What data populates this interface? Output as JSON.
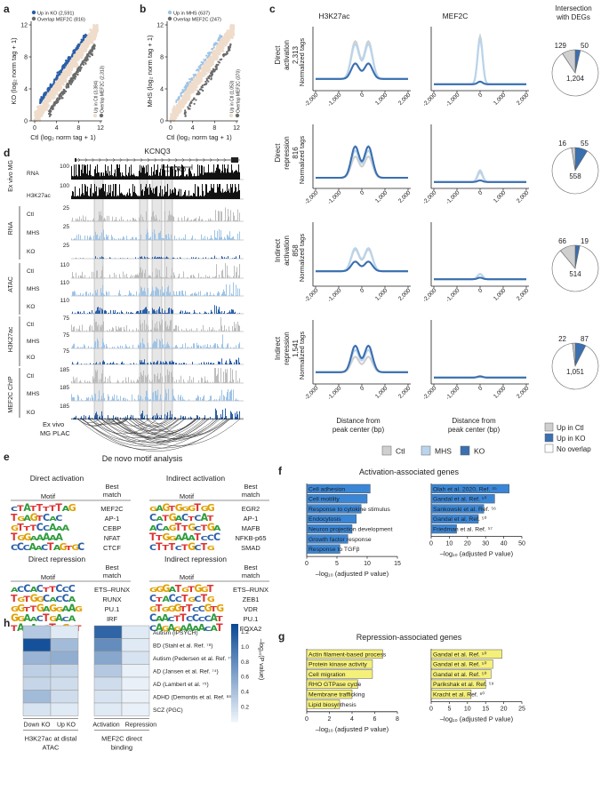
{
  "panels": {
    "a": {
      "letter": "a",
      "legend": [
        "Up in KO (2,591)",
        "Overlap MEF2C (816)"
      ],
      "side_legend": [
        "Up in Ctl (3,384)",
        "Overlap MEF2C (2,313)"
      ],
      "xlabel": "Ctl (log₂ norm tag + 1)",
      "ylabel": "KO (log₂ norm tag + 1)",
      "ticks": [
        "0",
        "4",
        "8",
        "12"
      ],
      "colors": {
        "up": "#2a5fa8",
        "overlap": "#6b6b6b",
        "bg": "#efdccb"
      }
    },
    "b": {
      "letter": "b",
      "legend": [
        "Up in MHS (637)",
        "Overlap MEF2C (247)"
      ],
      "side_legend": [
        "Up in Ctl (1,053)",
        "Overlap MEF2C (370)"
      ],
      "xlabel": "Ctl (log₂ norm tag + 1)",
      "ylabel": "MHS (log₂ norm tag + 1)",
      "ticks": [
        "0",
        "4",
        "8",
        "12"
      ],
      "colors": {
        "up": "#9fc4e6",
        "overlap": "#6b6b6b"
      }
    },
    "c": {
      "letter": "c",
      "col_titles": [
        "H3K27ac",
        "MEF2C",
        "Intersection with DEGs"
      ],
      "ylabel": "Normalized tags",
      "xlabel": "Distance from peak center (bp)",
      "xticks": [
        "-2,000",
        "-1,000",
        "0",
        "1,000",
        "2,000"
      ],
      "rows": [
        {
          "name": "Direct activation",
          "count": "2,313",
          "pie": {
            "ctl": 129,
            "ko": 50,
            "none": 1204,
            "labels": [
              "129",
              "50",
              "1,204"
            ]
          }
        },
        {
          "name": "Direct repression",
          "count": "816",
          "pie": {
            "ctl": 16,
            "ko": 55,
            "none": 558,
            "labels": [
              "16",
              "55",
              "558"
            ]
          }
        },
        {
          "name": "Indirect activation",
          "count": "858",
          "pie": {
            "ctl": 66,
            "ko": 19,
            "none": 514,
            "labels": [
              "66",
              "19",
              "514"
            ]
          }
        },
        {
          "name": "Indirect repression",
          "count": "1,541",
          "pie": {
            "ctl": 22,
            "ko": 87,
            "none": 1051,
            "labels": [
              "22",
              "87",
              "1,051"
            ]
          }
        }
      ],
      "legend": [
        "Ctl",
        "MHS",
        "KO"
      ],
      "pie_legend": [
        "Up in Ctl",
        "Up in KO",
        "No overlap"
      ],
      "colors": {
        "ctl": "#cfcfcf",
        "mhs": "#b9d4ec",
        "ko": "#3a6fb0"
      }
    },
    "d": {
      "letter": "d",
      "gene": "KCNQ3",
      "scale": "100kb",
      "groups": [
        "Ex vivo MG",
        "RNA",
        "ATAC",
        "H3K27ac",
        "MEF2C ChIP"
      ],
      "tracks": [
        {
          "name": "RNA",
          "scale": "100"
        },
        {
          "name": "H3K27ac",
          "scale": "100"
        },
        {
          "name": "Ctl",
          "scale": "25"
        },
        {
          "name": "MHS",
          "scale": "25"
        },
        {
          "name": "KO",
          "scale": "25"
        },
        {
          "name": "Ctl",
          "scale": "110"
        },
        {
          "name": "MHS",
          "scale": "110"
        },
        {
          "name": "KO",
          "scale": "110"
        },
        {
          "name": "Ctl",
          "scale": "75"
        },
        {
          "name": "MHS",
          "scale": "75"
        },
        {
          "name": "KO",
          "scale": "75"
        },
        {
          "name": "Ctl",
          "scale": "185"
        },
        {
          "name": "MHS",
          "scale": "185"
        },
        {
          "name": "KO",
          "scale": "185"
        }
      ],
      "plac_label": [
        "Ex vivo",
        "MG PLAC"
      ]
    },
    "e": {
      "letter": "e",
      "title": "De novo motif analysis",
      "header_motif": "Motif",
      "header_best": [
        "Best",
        "match"
      ],
      "blocks": [
        {
          "title": "Direct activation",
          "motifs": [
            "CTATTTTTAG",
            "TGAGTCAC",
            "GTTTCCAAA",
            "TGGAAAAA",
            "CCCAACTAGTGC"
          ],
          "matches": [
            "MEF2C",
            "AP-1",
            "CEBP",
            "NFAT",
            "CTCF"
          ]
        },
        {
          "title": "Indirect activation",
          "motifs": [
            "GAGTGGGTGG",
            "CATGACTCAT",
            "ACAGTTGCTGA",
            "TTGGAAATCCC",
            "CTTTCTGCTG"
          ],
          "matches": [
            "EGR2",
            "AP-1",
            "MAFB",
            "NFKB-p65",
            "SMAD"
          ]
        },
        {
          "title": "Direct repression",
          "motifs": [
            "ACCACTTCCC",
            "TGTGGCACCA",
            "GGTTGAGGAAG",
            "GGAACTGACA",
            "TACACCTGGGT"
          ],
          "matches": [
            "ETS–RUNX",
            "RUNX",
            "PU.1",
            "IRF",
            "ZEB1"
          ]
        },
        {
          "title": "Indirect repression",
          "motifs": [
            "GGGATGTGGT",
            "CTACCTGCTG",
            "GTGGGTTCCGTG",
            "CAACTTCCCCAT",
            "CAGAGAAAACAT"
          ],
          "matches": [
            "ETS–RUNX",
            "ZEB1",
            "VDR",
            "PU.1",
            "FOXA2"
          ]
        }
      ]
    },
    "f": {
      "letter": "f",
      "title": "Activation-associated genes",
      "xlabel": "–log₁₀ (adjusted P value)",
      "color": "#3a86d6",
      "left_ticks": [
        "0",
        "5",
        "10",
        "15"
      ],
      "right_ticks": [
        "0",
        "10",
        "20",
        "30",
        "40",
        "50"
      ]
    },
    "g": {
      "letter": "g",
      "title": "Repression-associated genes",
      "xlabel": "–log₁₀ (adjusted P value)",
      "color": "#f5f07a",
      "left_ticks": [
        "0",
        "2",
        "4",
        "6",
        "8"
      ],
      "right_ticks": [
        "0",
        "5",
        "10",
        "15",
        "20",
        "25"
      ]
    },
    "h": {
      "letter": "h",
      "rows": [
        "Autism (iPSYCH)",
        "BD (Stahl et al. Ref. ⁷⁸)",
        "Autism (Pedersen et al. Ref. ⁷⁹)",
        "AD (Jansen et al. Ref. ⁷⁴)",
        "AD (Lambert et al. ⁷⁵)",
        "ADHD (Demontis et al. Ref. ⁸⁸)",
        "SCZ (PGC)"
      ],
      "cols_left": [
        "Down KO",
        "Up KO"
      ],
      "cols_right": [
        "Activation",
        "Repression"
      ],
      "group_left": [
        "H3K27ac at distal",
        "ATAC"
      ],
      "group_right": [
        "MEF2C direct",
        "binding"
      ],
      "colorbar_label": "–log₁₀(P value)",
      "colorbar_ticks": [
        "1.2",
        "1.0",
        "0.8",
        "0.6",
        "0.4",
        "0.2"
      ]
    }
  },
  "chart_data": [
    {
      "type": "bar",
      "panel": "f-left",
      "categories": [
        "Cell adhesion",
        "Cell motility",
        "Response to cytokine stimulus",
        "Endocytosis",
        "Neuron projection development",
        "Growth factor response",
        "Response to TGFβ"
      ],
      "values": [
        10.5,
        10,
        9,
        8.2,
        7.5,
        6.8,
        5.5
      ],
      "xlim": [
        0,
        15
      ]
    },
    {
      "type": "bar",
      "panel": "f-right",
      "categories": [
        "Olah et al. 2020, Ref. ⁴⁵",
        "Gandal et al. Ref. ⁵⁰",
        "Sankowski et al. Ref. ⁵⁶",
        "Gandal et al. Ref. ⁵⁰",
        "Friedman et al. Ref. ⁵⁷"
      ],
      "values": [
        43,
        35,
        29,
        26,
        14
      ],
      "xlim": [
        0,
        50
      ]
    },
    {
      "type": "bar",
      "panel": "g-left",
      "categories": [
        "Actin filament-based process",
        "Protein kinase activity",
        "Cell migration",
        "RHO GTPase cycle",
        "Membrane trafficking",
        "Lipid biosynthesis"
      ],
      "values": [
        6.7,
        5.8,
        5.8,
        4.5,
        4.0,
        2.9
      ],
      "xlim": [
        0,
        8
      ]
    },
    {
      "type": "bar",
      "panel": "g-right",
      "categories": [
        "Gandal et al. Ref. ⁵⁰",
        "Gandal et al. Ref. ⁵⁰",
        "Gandal et al. Ref. ⁵⁰",
        "Parikshak et al. Ref. ⁵⁹",
        "Kracht et al. Ref. ⁶⁰"
      ],
      "values": [
        19.5,
        17,
        16.5,
        15,
        11
      ],
      "xlim": [
        0,
        25
      ]
    },
    {
      "type": "heatmap",
      "panel": "h",
      "rows": [
        "Autism (iPSYCH)",
        "BD (Stahl et al.)",
        "Autism (Pedersen et al.)",
        "AD (Jansen et al.)",
        "AD (Lambert et al.)",
        "ADHD (Demontis et al.)",
        "SCZ (PGC)"
      ],
      "cols": [
        "Down KO",
        "Up KO",
        "Activation",
        "Repression"
      ],
      "values": [
        [
          0.35,
          0.1,
          1.1,
          0.1
        ],
        [
          1.25,
          0.45,
          0.8,
          0.1
        ],
        [
          0.5,
          0.55,
          0.6,
          0.15
        ],
        [
          0.3,
          0.25,
          0.35,
          0.05
        ],
        [
          0.25,
          0.2,
          0.2,
          0.05
        ],
        [
          0.45,
          0.2,
          0.15,
          0.05
        ],
        [
          0.15,
          0.1,
          0.1,
          0.05
        ]
      ],
      "zlim": [
        0,
        1.3
      ]
    }
  ]
}
